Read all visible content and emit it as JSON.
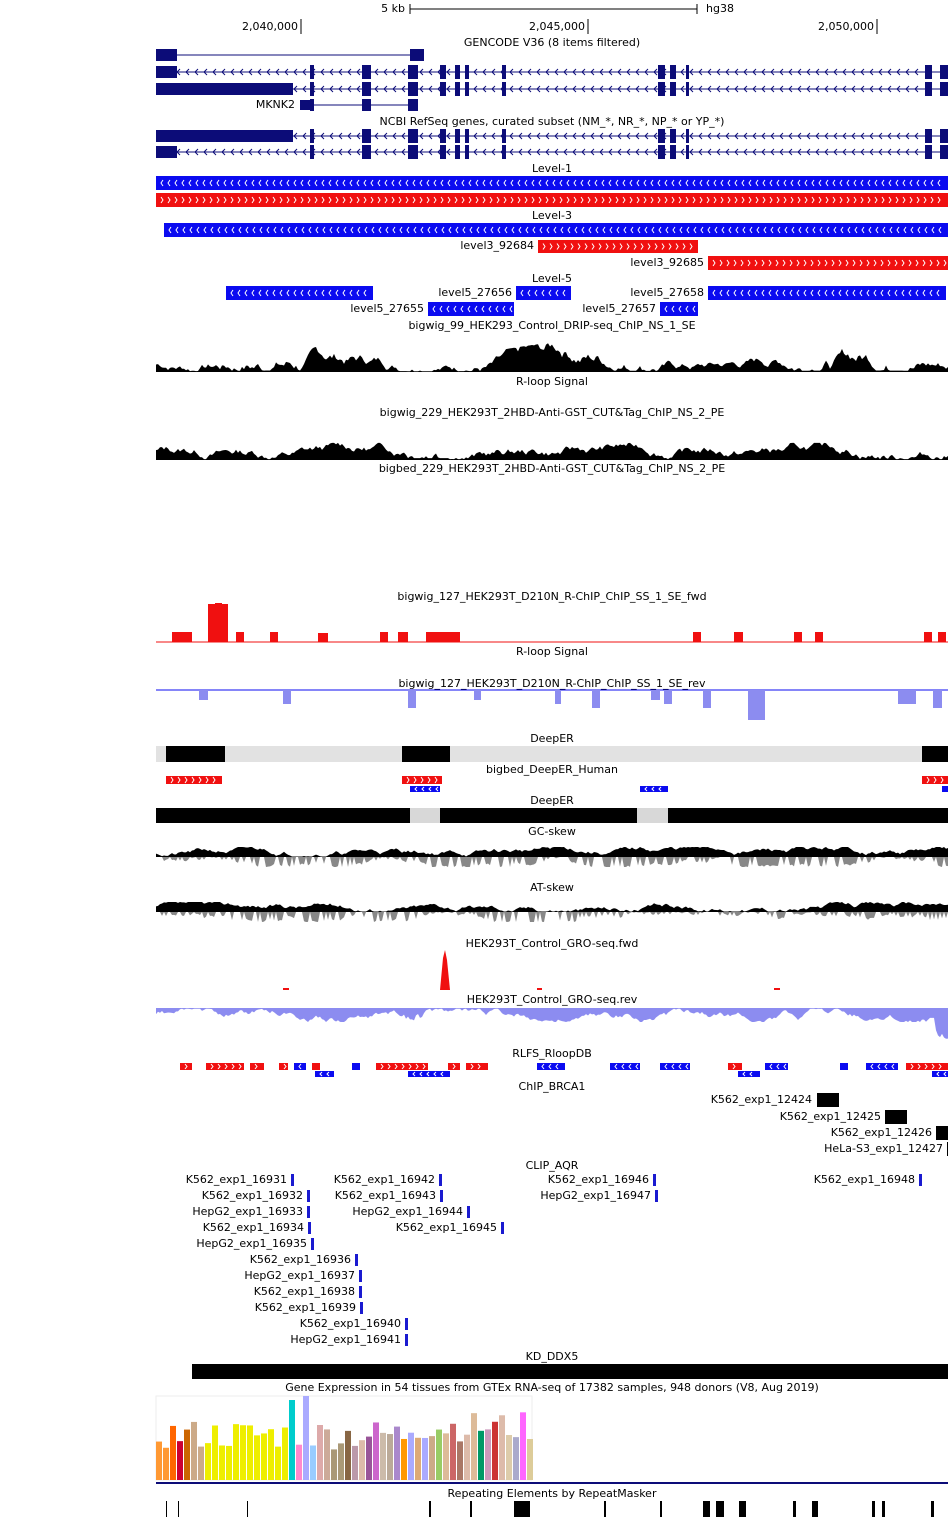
{
  "ruler": {
    "scale": "5 kb",
    "assembly": "hg38",
    "positions": [
      "2,040,000",
      "2,045,000",
      "2,050,000"
    ]
  },
  "tracks": [
    {
      "title": "GENCODE V36 (8 items filtered)",
      "labels": [
        "MKNK2"
      ]
    },
    {
      "title": "NCBI RefSeq genes, curated subset (NM_*, NR_*, NP_* or YP_*)"
    },
    {
      "title": "Level-1"
    },
    {
      "title": "Level-3",
      "labels": [
        "level3_92684",
        "level3_92685"
      ]
    },
    {
      "title": "Level-5",
      "labels": [
        "level5_27656",
        "level5_27658",
        "level5_27655",
        "level5_27657"
      ]
    },
    {
      "title": "bigwig_99_HEK293_Control_DRIP-seq_ChIP_NS_1_SE"
    },
    {
      "title": "R-loop Signal"
    },
    {
      "title": "bigwig_229_HEK293T_2HBD-Anti-GST_CUT&Tag_ChIP_NS_2_PE"
    },
    {
      "title": "bigbed_229_HEK293T_2HBD-Anti-GST_CUT&Tag_ChIP_NS_2_PE"
    },
    {
      "title": "bigwig_127_HEK293T_D210N_R-ChIP_ChIP_SS_1_SE_fwd"
    },
    {
      "title": "R-loop Signal"
    },
    {
      "title": "bigwig_127_HEK293T_D210N_R-ChIP_ChIP_SS_1_SE_rev"
    },
    {
      "title": "DeepER"
    },
    {
      "title": "bigbed_DeepER_Human"
    },
    {
      "title": "DeepER"
    },
    {
      "title": "GC-skew"
    },
    {
      "title": "AT-skew"
    },
    {
      "title": "HEK293T_Control_GRO-seq.fwd"
    },
    {
      "title": "HEK293T_Control_GRO-seq.rev"
    },
    {
      "title": "RLFS_RloopDB"
    },
    {
      "title": "ChIP_BRCA1",
      "labels": [
        "K562_exp1_12424",
        "K562_exp1_12425",
        "K562_exp1_12426",
        "HeLa-S3_exp1_12427"
      ]
    },
    {
      "title": "CLIP_AQR",
      "labels": [
        "K562_exp1_16931",
        "K562_exp1_16942",
        "K562_exp1_16946",
        "K562_exp1_16948",
        "K562_exp1_16932",
        "K562_exp1_16943",
        "HepG2_exp1_16947",
        "HepG2_exp1_16933",
        "HepG2_exp1_16944",
        "K562_exp1_16934",
        "K562_exp1_16945",
        "HepG2_exp1_16935",
        "K562_exp1_16936",
        "HepG2_exp1_16937",
        "K562_exp1_16938",
        "K562_exp1_16939",
        "K562_exp1_16940",
        "HepG2_exp1_16941"
      ]
    },
    {
      "title": "KD_DDX5"
    },
    {
      "title": "Gene Expression in 54 tissues from GTEx RNA-seq of 17382 samples, 948 donors (V8, Aug 2019)"
    },
    {
      "title": "Repeating Elements by RepeatMasker"
    }
  ]
}
